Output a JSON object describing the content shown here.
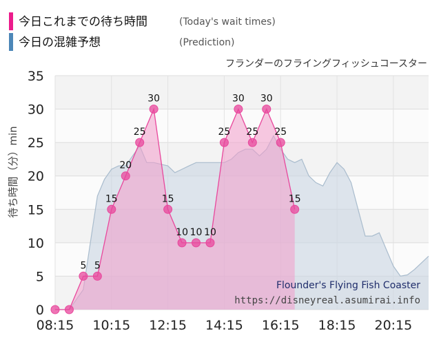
{
  "legend": {
    "today_label": "今日これまでの待ち時間",
    "today_sub": "(Today's wait times)",
    "pred_label": "今日の混雑予想",
    "pred_sub": "(Prediction)"
  },
  "credit": {
    "name_en": "Flounder's Flying Fish Coaster",
    "url": "https://disneyreal.asumirai.info"
  },
  "colors": {
    "today": "#e8479c",
    "today_fill": "#f39ccb",
    "prediction_line": "#a9bccd",
    "prediction_fill": "#c9d6e2",
    "legend_today": "#ec1c8c",
    "legend_prediction": "#4d87b8"
  },
  "chart_data": {
    "type": "area",
    "title": "フランダーのフライングフィッシュコースター",
    "ylabel": "待ち時間（分）min",
    "xlabel": "",
    "ylim": [
      0,
      35
    ],
    "xlim": [
      "08:15",
      "21:30"
    ],
    "yticks": [
      "0",
      "5",
      "10",
      "15",
      "20",
      "25",
      "30",
      "35"
    ],
    "xticks": [
      "08:15",
      "10:15",
      "12:15",
      "14:15",
      "16:15",
      "18:15",
      "20:15"
    ],
    "grid": true,
    "series": [
      {
        "name": "今日これまでの待ち時間",
        "x": [
          "08:15",
          "08:45",
          "09:15",
          "09:45",
          "10:15",
          "10:45",
          "11:15",
          "11:45",
          "12:15",
          "12:45",
          "13:15",
          "13:45",
          "14:15",
          "14:45",
          "15:15",
          "15:45",
          "16:15",
          "16:45"
        ],
        "values": [
          0,
          0,
          5,
          5,
          15,
          20,
          25,
          30,
          15,
          10,
          10,
          10,
          25,
          30,
          25,
          30,
          25,
          15
        ],
        "labels": [
          "",
          "",
          "5",
          "5",
          "15",
          "20",
          "25",
          "30",
          "15",
          "10",
          "10",
          "10",
          "25",
          "30",
          "25",
          "30",
          "25",
          "15"
        ]
      },
      {
        "name": "今日の混雑予想",
        "x": [
          "08:15",
          "08:45",
          "09:15",
          "09:30",
          "09:45",
          "10:00",
          "10:15",
          "10:30",
          "10:45",
          "11:15",
          "11:30",
          "11:45",
          "12:15",
          "12:30",
          "12:45",
          "13:00",
          "13:15",
          "13:45",
          "14:15",
          "14:30",
          "14:45",
          "15:00",
          "15:15",
          "15:30",
          "15:45",
          "16:00",
          "16:15",
          "16:30",
          "16:45",
          "17:00",
          "17:15",
          "17:30",
          "17:45",
          "18:00",
          "18:15",
          "18:30",
          "18:45",
          "19:00",
          "19:15",
          "19:30",
          "19:45",
          "20:00",
          "20:15",
          "20:30",
          "20:45",
          "21:00",
          "21:30"
        ],
        "values": [
          0,
          0,
          3,
          10,
          17,
          19.5,
          21,
          21.5,
          21.5,
          24.5,
          22,
          22,
          21.5,
          20.5,
          21,
          21.5,
          22,
          22,
          22,
          22.5,
          23.5,
          24,
          24,
          23,
          24,
          26,
          24,
          22.5,
          22,
          22.5,
          20,
          19,
          18.5,
          20.5,
          22,
          21,
          19,
          15,
          11,
          11,
          11.5,
          9,
          6.5,
          5,
          5.2,
          6,
          8
        ]
      }
    ]
  }
}
